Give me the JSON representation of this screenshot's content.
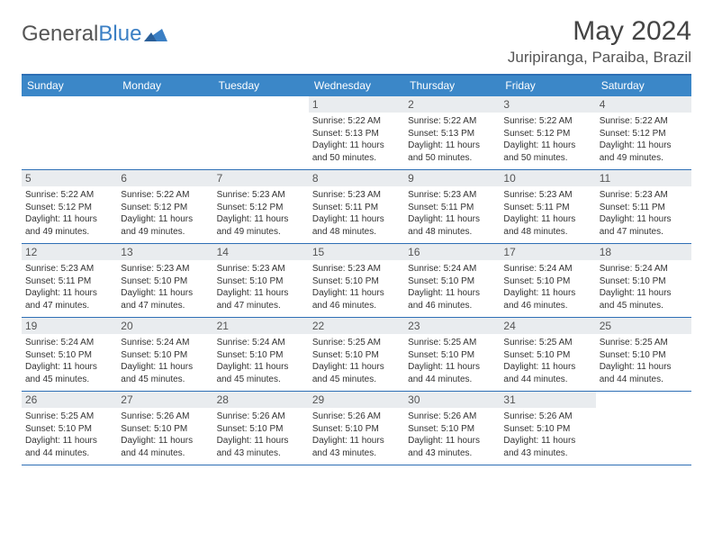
{
  "logo": {
    "text1": "General",
    "text2": "Blue"
  },
  "title": "May 2024",
  "location": "Juripiranga, Paraiba, Brazil",
  "colors": {
    "header_bg": "#3b87c8",
    "border": "#2e6fb5",
    "daynum_bg": "#e9ecef",
    "text": "#333333"
  },
  "day_names": [
    "Sunday",
    "Monday",
    "Tuesday",
    "Wednesday",
    "Thursday",
    "Friday",
    "Saturday"
  ],
  "weeks": [
    [
      {
        "n": "",
        "sr": "",
        "ss": "",
        "dl": ""
      },
      {
        "n": "",
        "sr": "",
        "ss": "",
        "dl": ""
      },
      {
        "n": "",
        "sr": "",
        "ss": "",
        "dl": ""
      },
      {
        "n": "1",
        "sr": "Sunrise: 5:22 AM",
        "ss": "Sunset: 5:13 PM",
        "dl": "Daylight: 11 hours and 50 minutes."
      },
      {
        "n": "2",
        "sr": "Sunrise: 5:22 AM",
        "ss": "Sunset: 5:13 PM",
        "dl": "Daylight: 11 hours and 50 minutes."
      },
      {
        "n": "3",
        "sr": "Sunrise: 5:22 AM",
        "ss": "Sunset: 5:12 PM",
        "dl": "Daylight: 11 hours and 50 minutes."
      },
      {
        "n": "4",
        "sr": "Sunrise: 5:22 AM",
        "ss": "Sunset: 5:12 PM",
        "dl": "Daylight: 11 hours and 49 minutes."
      }
    ],
    [
      {
        "n": "5",
        "sr": "Sunrise: 5:22 AM",
        "ss": "Sunset: 5:12 PM",
        "dl": "Daylight: 11 hours and 49 minutes."
      },
      {
        "n": "6",
        "sr": "Sunrise: 5:22 AM",
        "ss": "Sunset: 5:12 PM",
        "dl": "Daylight: 11 hours and 49 minutes."
      },
      {
        "n": "7",
        "sr": "Sunrise: 5:23 AM",
        "ss": "Sunset: 5:12 PM",
        "dl": "Daylight: 11 hours and 49 minutes."
      },
      {
        "n": "8",
        "sr": "Sunrise: 5:23 AM",
        "ss": "Sunset: 5:11 PM",
        "dl": "Daylight: 11 hours and 48 minutes."
      },
      {
        "n": "9",
        "sr": "Sunrise: 5:23 AM",
        "ss": "Sunset: 5:11 PM",
        "dl": "Daylight: 11 hours and 48 minutes."
      },
      {
        "n": "10",
        "sr": "Sunrise: 5:23 AM",
        "ss": "Sunset: 5:11 PM",
        "dl": "Daylight: 11 hours and 48 minutes."
      },
      {
        "n": "11",
        "sr": "Sunrise: 5:23 AM",
        "ss": "Sunset: 5:11 PM",
        "dl": "Daylight: 11 hours and 47 minutes."
      }
    ],
    [
      {
        "n": "12",
        "sr": "Sunrise: 5:23 AM",
        "ss": "Sunset: 5:11 PM",
        "dl": "Daylight: 11 hours and 47 minutes."
      },
      {
        "n": "13",
        "sr": "Sunrise: 5:23 AM",
        "ss": "Sunset: 5:10 PM",
        "dl": "Daylight: 11 hours and 47 minutes."
      },
      {
        "n": "14",
        "sr": "Sunrise: 5:23 AM",
        "ss": "Sunset: 5:10 PM",
        "dl": "Daylight: 11 hours and 47 minutes."
      },
      {
        "n": "15",
        "sr": "Sunrise: 5:23 AM",
        "ss": "Sunset: 5:10 PM",
        "dl": "Daylight: 11 hours and 46 minutes."
      },
      {
        "n": "16",
        "sr": "Sunrise: 5:24 AM",
        "ss": "Sunset: 5:10 PM",
        "dl": "Daylight: 11 hours and 46 minutes."
      },
      {
        "n": "17",
        "sr": "Sunrise: 5:24 AM",
        "ss": "Sunset: 5:10 PM",
        "dl": "Daylight: 11 hours and 46 minutes."
      },
      {
        "n": "18",
        "sr": "Sunrise: 5:24 AM",
        "ss": "Sunset: 5:10 PM",
        "dl": "Daylight: 11 hours and 45 minutes."
      }
    ],
    [
      {
        "n": "19",
        "sr": "Sunrise: 5:24 AM",
        "ss": "Sunset: 5:10 PM",
        "dl": "Daylight: 11 hours and 45 minutes."
      },
      {
        "n": "20",
        "sr": "Sunrise: 5:24 AM",
        "ss": "Sunset: 5:10 PM",
        "dl": "Daylight: 11 hours and 45 minutes."
      },
      {
        "n": "21",
        "sr": "Sunrise: 5:24 AM",
        "ss": "Sunset: 5:10 PM",
        "dl": "Daylight: 11 hours and 45 minutes."
      },
      {
        "n": "22",
        "sr": "Sunrise: 5:25 AM",
        "ss": "Sunset: 5:10 PM",
        "dl": "Daylight: 11 hours and 45 minutes."
      },
      {
        "n": "23",
        "sr": "Sunrise: 5:25 AM",
        "ss": "Sunset: 5:10 PM",
        "dl": "Daylight: 11 hours and 44 minutes."
      },
      {
        "n": "24",
        "sr": "Sunrise: 5:25 AM",
        "ss": "Sunset: 5:10 PM",
        "dl": "Daylight: 11 hours and 44 minutes."
      },
      {
        "n": "25",
        "sr": "Sunrise: 5:25 AM",
        "ss": "Sunset: 5:10 PM",
        "dl": "Daylight: 11 hours and 44 minutes."
      }
    ],
    [
      {
        "n": "26",
        "sr": "Sunrise: 5:25 AM",
        "ss": "Sunset: 5:10 PM",
        "dl": "Daylight: 11 hours and 44 minutes."
      },
      {
        "n": "27",
        "sr": "Sunrise: 5:26 AM",
        "ss": "Sunset: 5:10 PM",
        "dl": "Daylight: 11 hours and 44 minutes."
      },
      {
        "n": "28",
        "sr": "Sunrise: 5:26 AM",
        "ss": "Sunset: 5:10 PM",
        "dl": "Daylight: 11 hours and 43 minutes."
      },
      {
        "n": "29",
        "sr": "Sunrise: 5:26 AM",
        "ss": "Sunset: 5:10 PM",
        "dl": "Daylight: 11 hours and 43 minutes."
      },
      {
        "n": "30",
        "sr": "Sunrise: 5:26 AM",
        "ss": "Sunset: 5:10 PM",
        "dl": "Daylight: 11 hours and 43 minutes."
      },
      {
        "n": "31",
        "sr": "Sunrise: 5:26 AM",
        "ss": "Sunset: 5:10 PM",
        "dl": "Daylight: 11 hours and 43 minutes."
      },
      {
        "n": "",
        "sr": "",
        "ss": "",
        "dl": ""
      }
    ]
  ]
}
